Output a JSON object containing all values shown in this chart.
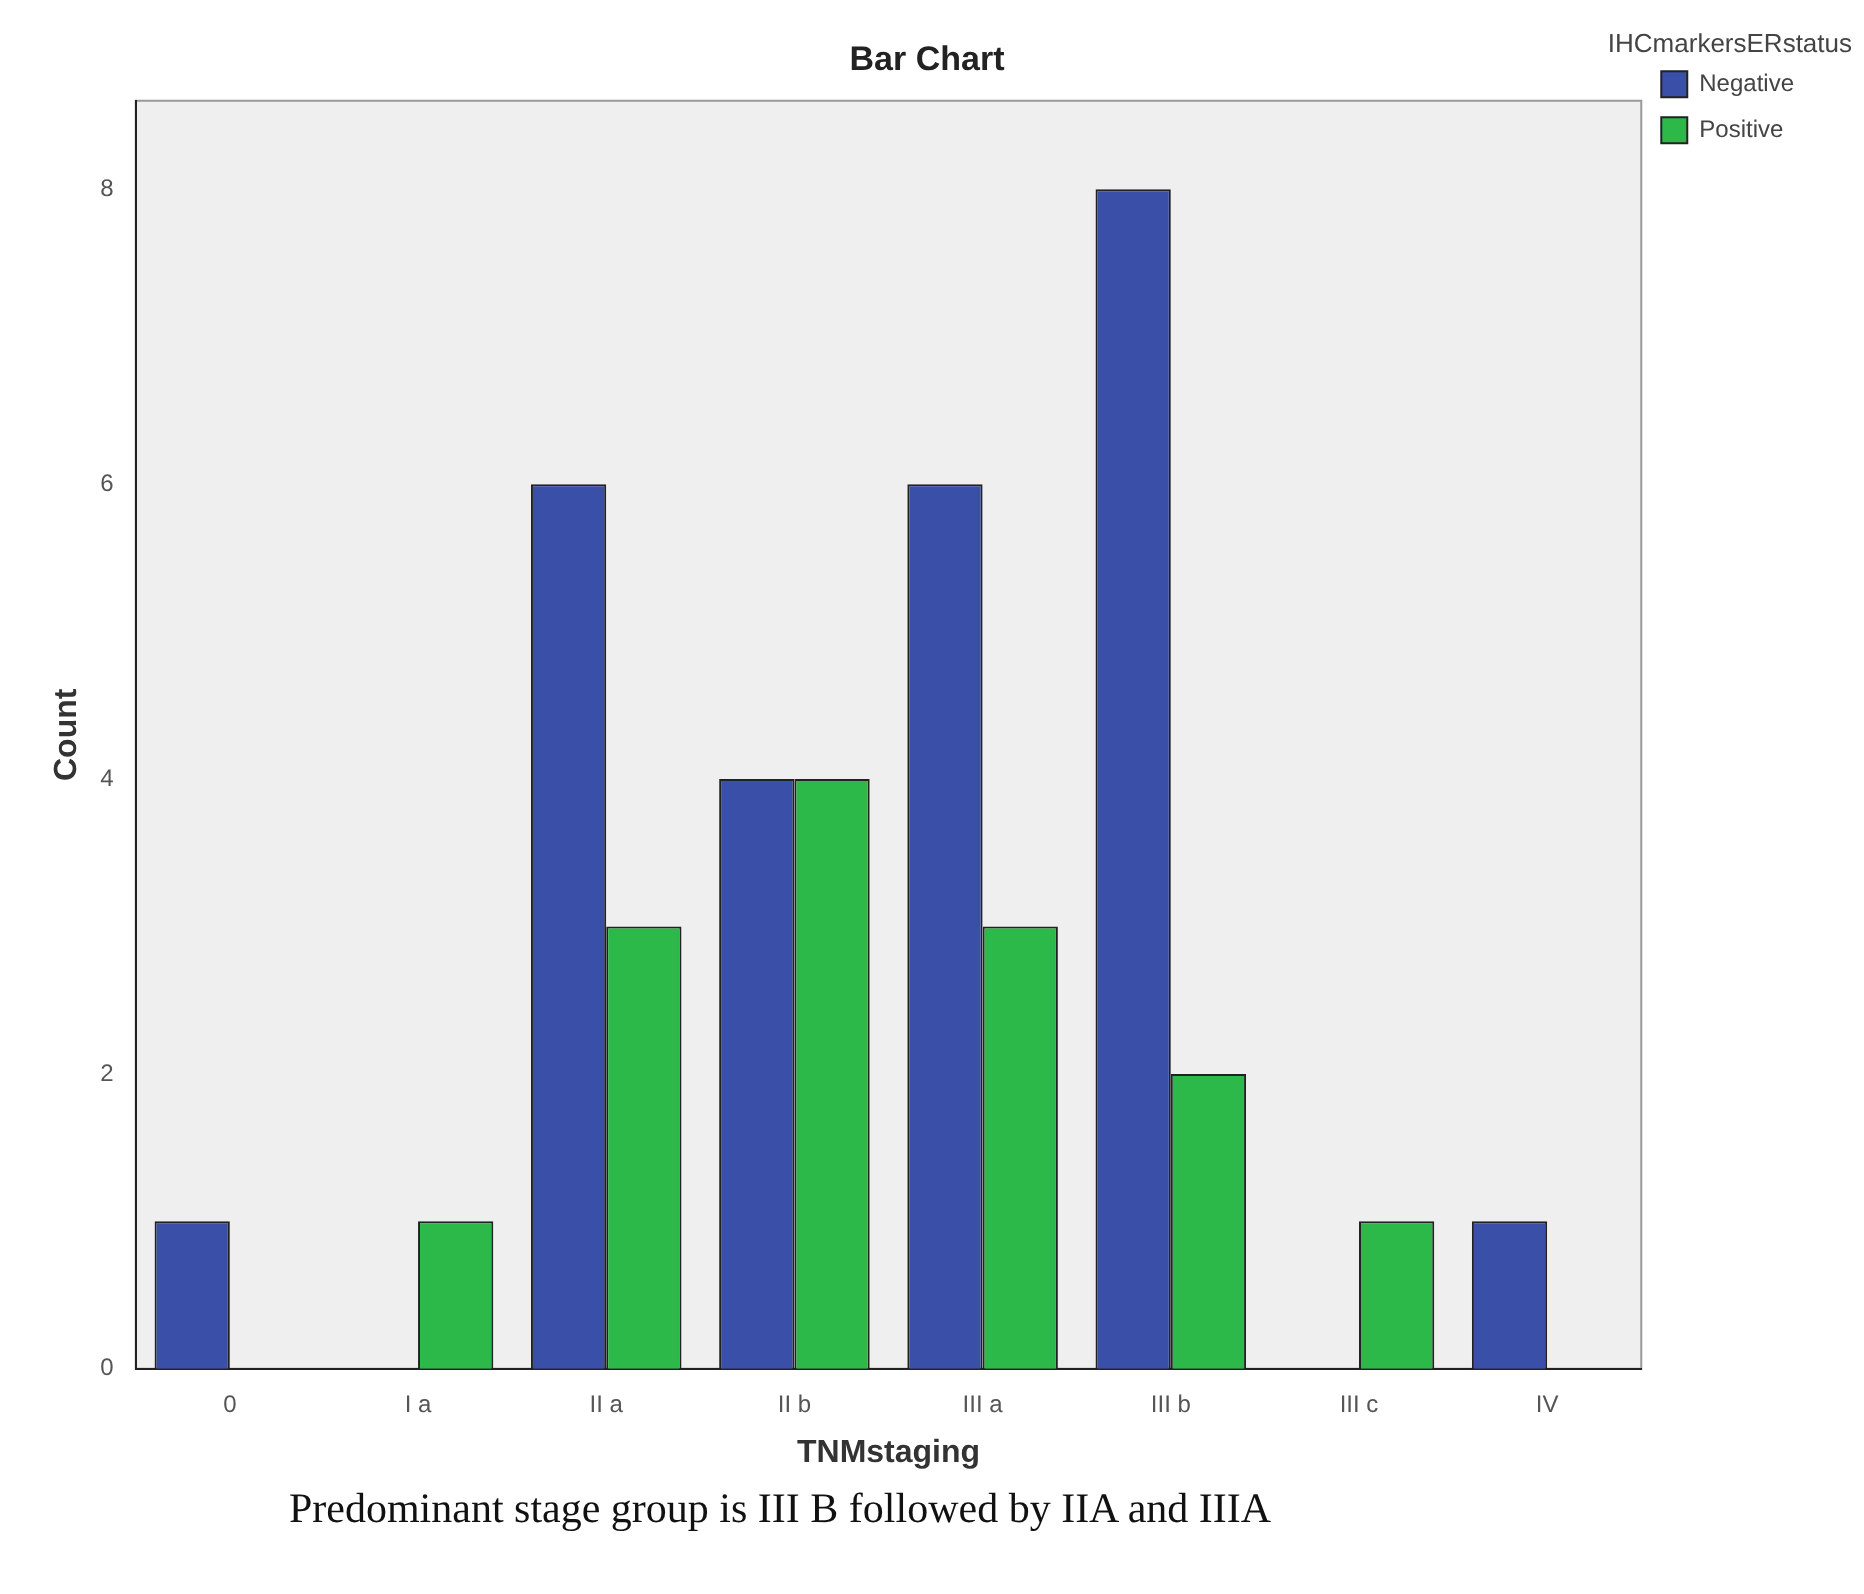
{
  "chart_data": {
    "type": "bar",
    "title": "Bar Chart",
    "xlabel": "TNMstaging",
    "ylabel": "Count",
    "legend_title": "IHCmarkersERstatus",
    "categories": [
      "0",
      "I a",
      "II a",
      "II b",
      "III a",
      "III b",
      "III c",
      "IV"
    ],
    "series": [
      {
        "name": "Negative",
        "color": "#3a4fa8",
        "values": [
          1,
          0,
          6,
          4,
          6,
          8,
          0,
          1
        ]
      },
      {
        "name": "Positive",
        "color": "#2db84a",
        "values": [
          0,
          1,
          3,
          4,
          3,
          2,
          1,
          0
        ]
      }
    ],
    "ylim": [
      0,
      8.6
    ],
    "yticks": [
      0,
      2,
      4,
      6,
      8
    ],
    "grid": false,
    "legend": "top right",
    "annotations": [
      "Predominant stage group is III B followed by IIA and IIIA"
    ]
  }
}
